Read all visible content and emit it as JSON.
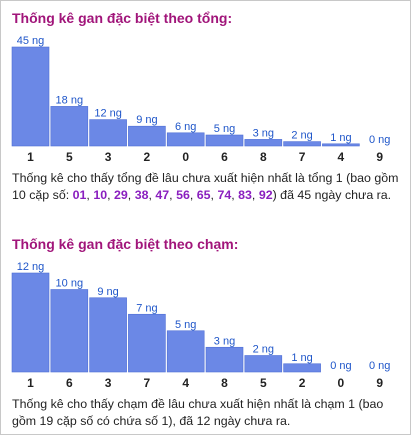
{
  "colors": {
    "title": "#a1157a",
    "bar": "#6b88e6",
    "bar_stroke": "#4f6fd6",
    "value_label": "#1f56c9",
    "highlight": "#8a1fbf"
  },
  "sections": [
    {
      "title": "Thống kê gan đặc biệt theo tổng:",
      "desc_before": "Thống kê cho thấy tổng đề lâu chưa xuất hiện nhất là tổng 1 (bao gồm 10 cặp số: ",
      "pairs": [
        "01",
        "10",
        "29",
        "38",
        "47",
        "56",
        "65",
        "74",
        "83",
        "92"
      ],
      "desc_after": ") đã 45 ngày chưa ra."
    },
    {
      "title": "Thống kê gan đặc biệt theo chạm:",
      "desc": "Thống kê cho thấy chạm đề lâu chưa xuất hiện nhất là chạm 1 (bao gồm 19 cặp số có chứa số 1), đã 12 ngày chưa ra."
    }
  ],
  "chart_data": [
    {
      "type": "bar",
      "title": "Thống kê gan đặc biệt theo tổng:",
      "categories": [
        "1",
        "5",
        "3",
        "2",
        "0",
        "6",
        "8",
        "7",
        "4",
        "9"
      ],
      "values": [
        45,
        18,
        12,
        9,
        6,
        5,
        3,
        2,
        1,
        0
      ],
      "value_labels": [
        "45 ng",
        "18 ng",
        "12 ng",
        "9 ng",
        "6 ng",
        "5 ng",
        "3 ng",
        "2 ng",
        "1 ng",
        "0 ng"
      ],
      "ylim": [
        0,
        45
      ],
      "grid": false,
      "legend": "none"
    },
    {
      "type": "bar",
      "title": "Thống kê gan đặc biệt theo chạm:",
      "categories": [
        "1",
        "6",
        "3",
        "7",
        "4",
        "8",
        "5",
        "2",
        "0",
        "9"
      ],
      "values": [
        12,
        10,
        9,
        7,
        5,
        3,
        2,
        1,
        0,
        0
      ],
      "value_labels": [
        "12 ng",
        "10 ng",
        "9 ng",
        "7 ng",
        "5 ng",
        "3 ng",
        "2 ng",
        "1 ng",
        "0 ng",
        "0 ng"
      ],
      "ylim": [
        0,
        12
      ],
      "grid": false,
      "legend": "none"
    }
  ]
}
